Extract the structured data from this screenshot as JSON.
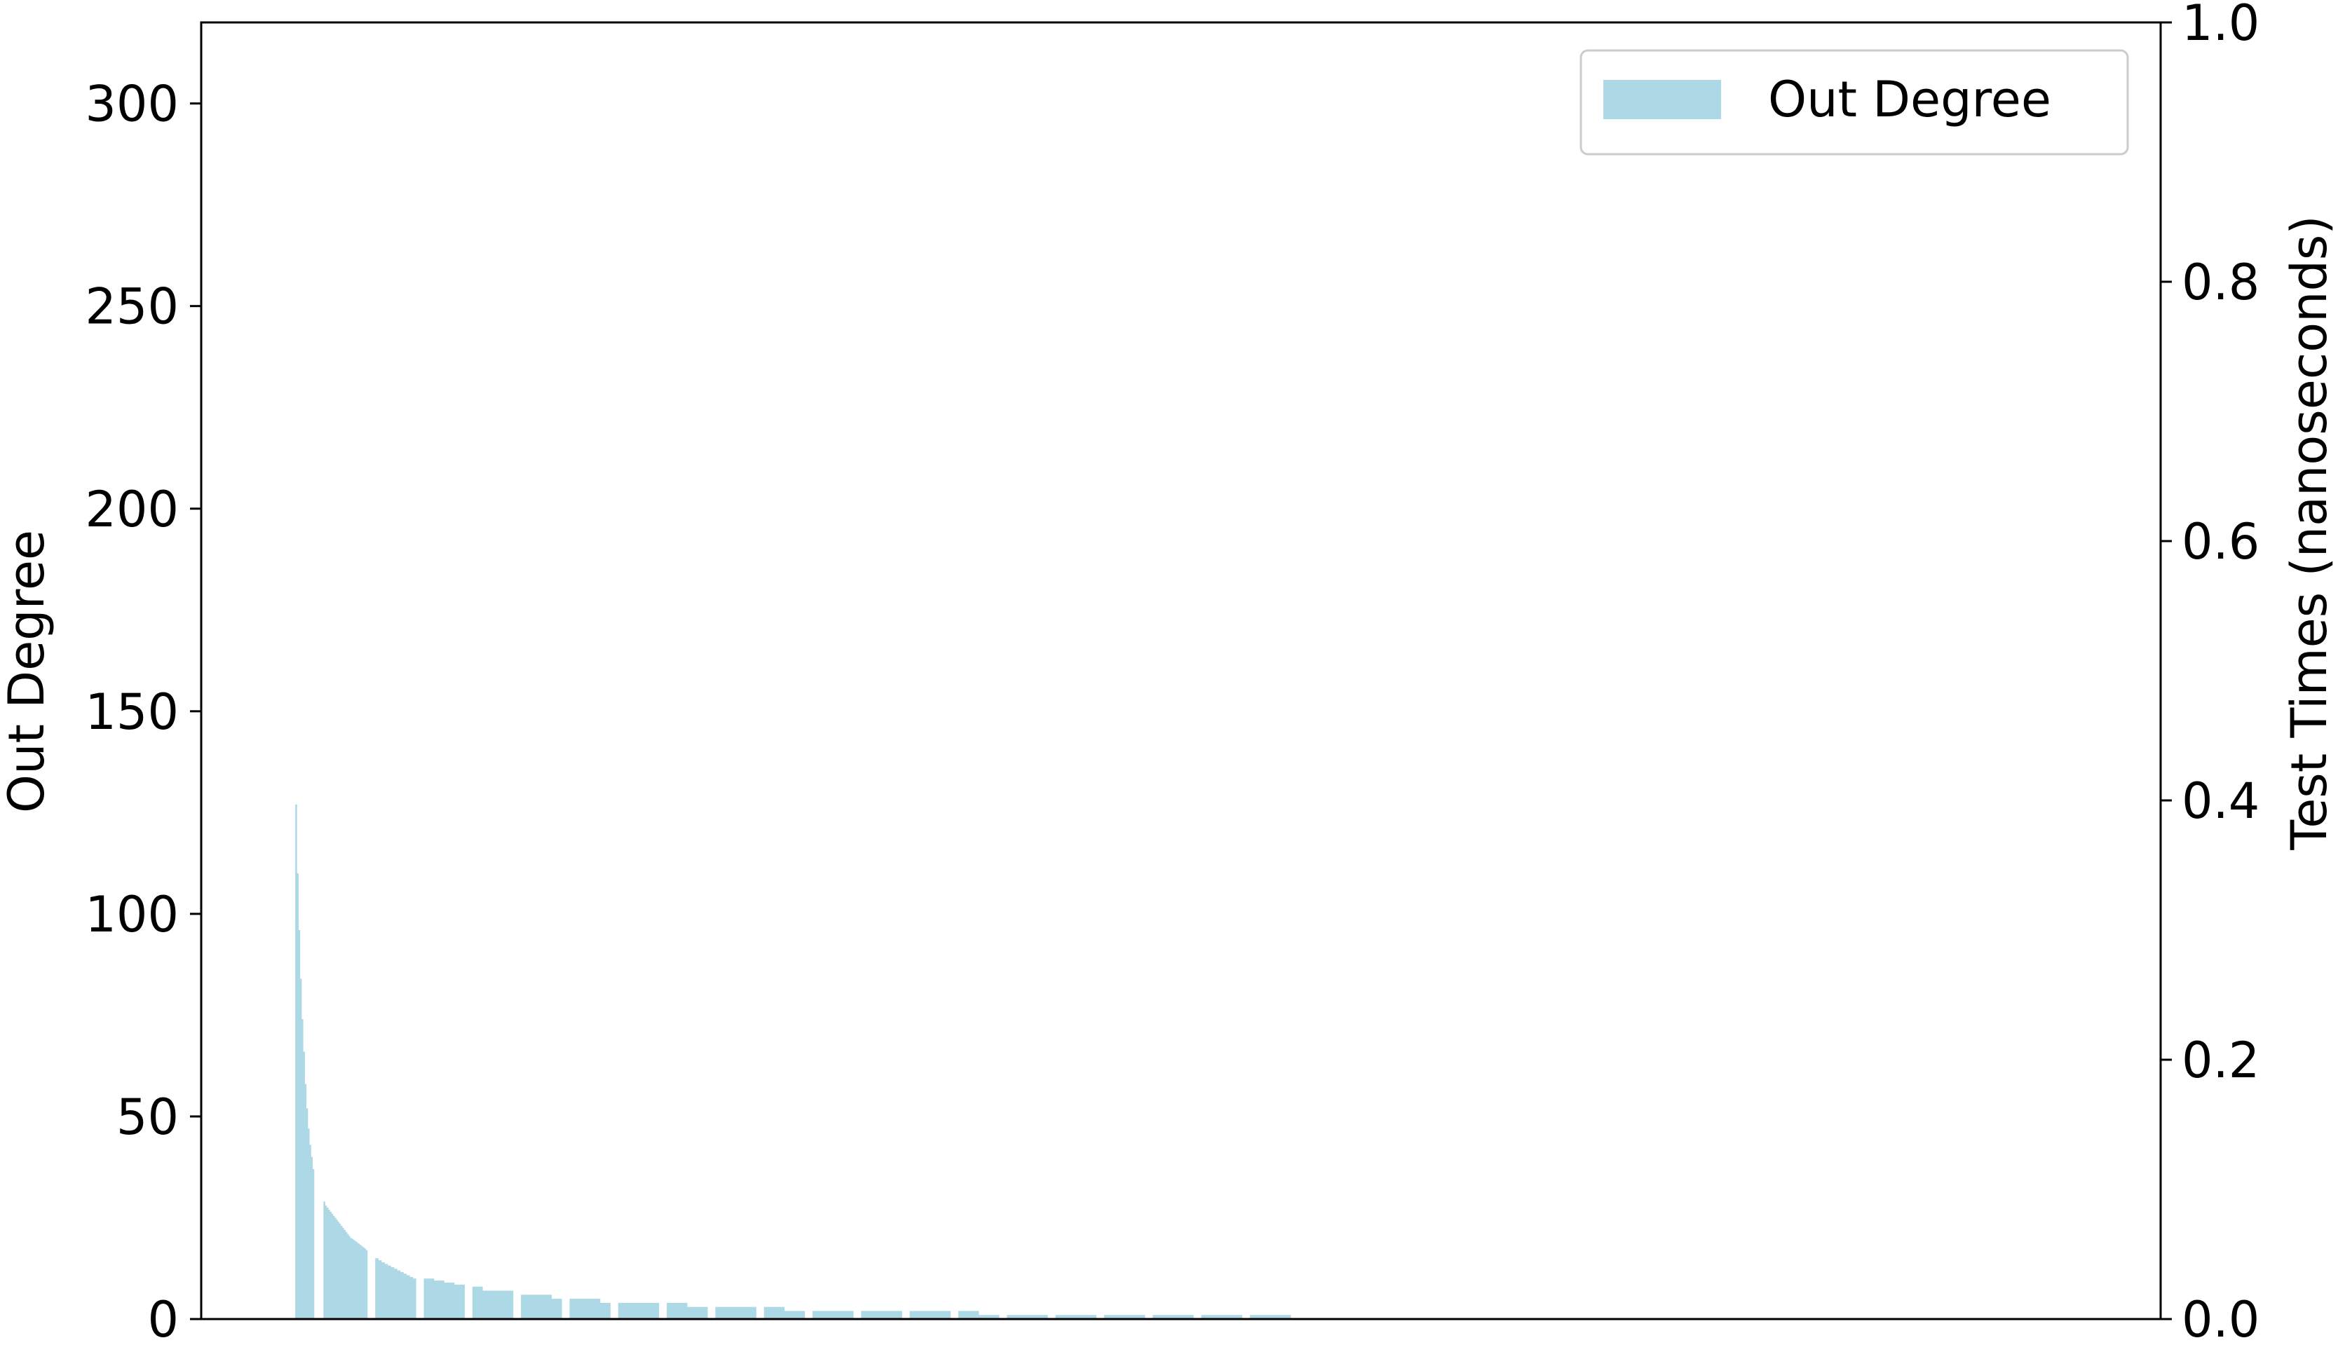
{
  "chart_data": {
    "type": "bar",
    "title": "",
    "xlabel": "",
    "ylabel": "Out Degree",
    "ylabel_right": "Test Times (nanoseconds)",
    "ylim": [
      0,
      320
    ],
    "ylim_right": [
      0,
      1.0
    ],
    "yticks": [
      0,
      50,
      100,
      150,
      200,
      250,
      300
    ],
    "yticks_labels": [
      "0",
      "50",
      "100",
      "150",
      "200",
      "250",
      "300"
    ],
    "yticks_right": [
      0.0,
      0.2,
      0.4,
      0.6,
      0.8,
      1.0
    ],
    "yticks_right_labels": [
      "0.0",
      "0.2",
      "0.4",
      "0.6",
      "0.8",
      "1.0"
    ],
    "xlim": [
      -60,
      1190
    ],
    "grid": false,
    "legend": {
      "position": "upper-right",
      "entries": [
        "Out Degree"
      ]
    },
    "colors": {
      "bar": "#add8e6",
      "axis": "#000000",
      "legend_border": "#cccccc"
    },
    "series": [
      {
        "name": "Out Degree",
        "color": "#add8e6",
        "groups": [
          {
            "x_start": 0,
            "count": 12,
            "values": [
              127,
              110,
              96,
              84,
              74,
              66,
              58,
              52,
              47,
              43,
              40,
              37
            ]
          },
          {
            "x_start": 18,
            "count": 28,
            "values": [
              29,
              28,
              27.5,
              27,
              26.5,
              26,
              25.5,
              25,
              24.5,
              24,
              23.5,
              23,
              22.5,
              22,
              21.5,
              21,
              20.5,
              20,
              19.8,
              19.5,
              19.2,
              18.9,
              18.6,
              18.3,
              18,
              17.7,
              17.4,
              17
            ]
          },
          {
            "x_start": 51,
            "count": 26,
            "values": [
              15,
              14.5,
              14,
              13.6,
              13.2,
              12.8,
              12.4,
              12,
              11.6,
              11.2,
              10.8,
              10.4,
              10
            ]
          },
          {
            "x_start": 82,
            "count": 26,
            "values": [
              10,
              9.5,
              9,
              8.5
            ]
          },
          {
            "x_start": 113,
            "count": 26,
            "values": [
              8,
              7,
              7,
              7
            ]
          },
          {
            "x_start": 144,
            "count": 26,
            "values": [
              6,
              6,
              6,
              5
            ]
          },
          {
            "x_start": 175,
            "count": 26,
            "values": [
              5,
              5,
              5,
              4
            ]
          },
          {
            "x_start": 206,
            "count": 26,
            "values": [
              4,
              4
            ]
          },
          {
            "x_start": 237,
            "count": 26,
            "values": [
              4,
              3
            ]
          },
          {
            "x_start": 268,
            "count": 26,
            "values": [
              3,
              3
            ]
          },
          {
            "x_start": 299,
            "count": 26,
            "values": [
              3,
              2
            ]
          },
          {
            "x_start": 330,
            "count": 26,
            "values": [
              2,
              2
            ]
          },
          {
            "x_start": 361,
            "count": 26,
            "values": [
              2,
              2
            ]
          },
          {
            "x_start": 392,
            "count": 26,
            "values": [
              2,
              2
            ]
          },
          {
            "x_start": 423,
            "count": 26,
            "values": [
              2,
              1
            ]
          },
          {
            "x_start": 454,
            "count": 26,
            "values": [
              1,
              1
            ]
          },
          {
            "x_start": 485,
            "count": 26,
            "values": [
              1,
              1
            ]
          },
          {
            "x_start": 516,
            "count": 26,
            "values": [
              1,
              1
            ]
          },
          {
            "x_start": 547,
            "count": 26,
            "values": [
              1,
              1
            ]
          },
          {
            "x_start": 578,
            "count": 26,
            "values": [
              1,
              1
            ]
          },
          {
            "x_start": 609,
            "count": 26,
            "values": [
              1,
              1
            ]
          }
        ]
      }
    ]
  }
}
